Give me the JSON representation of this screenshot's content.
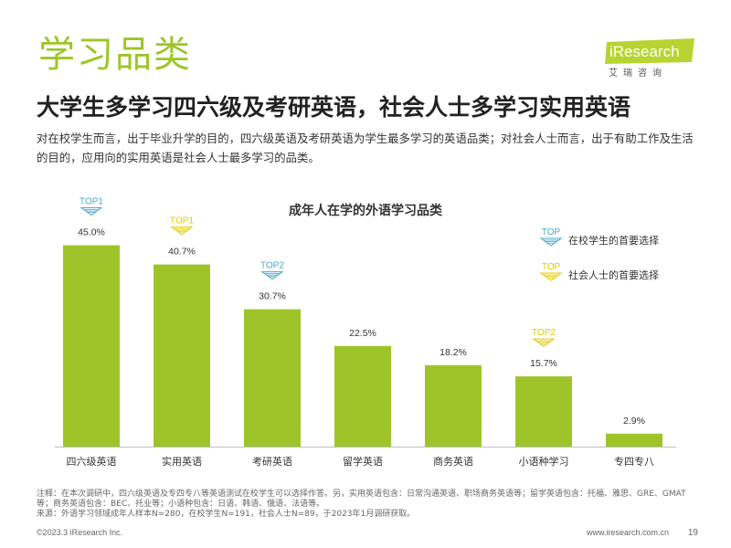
{
  "page": {
    "section_title": "学习品类",
    "headline": "大学生多学习四六级及考研英语，社会人士多学习实用英语",
    "summary": "对在校学生而言，出于毕业升学的目的，四六级英语及考研英语为学生最多学习的英语品类；对社会人士而言，出于有助工作及生活的目的，应用向的实用英语是社会人士最多学习的品类。",
    "notes": "注释：在本次调研中，四六级英语及专四专八等英语测试在校学生可以选择作答。另，实用英语包含：日常沟通英语、职场商务英语等；留学英语包含：托福、雅思、GRE、GMAT等；商务英语包含：BEC、托业等；小语种包含：日语、韩语、俄语、法语等。",
    "source": "来源：外语学习领域成年人样本N=280，在校学生N=191，社会人士N=89，于2023年1月调研获取。",
    "copyright": "©2023.3 iResearch Inc.",
    "website": "www.iresearch.com.cn",
    "page_number": "19"
  },
  "logo": {
    "name": "iResearch",
    "chinese": "艾瑞咨询"
  },
  "colors": {
    "accent_green": "#9dc52a",
    "top_student": "#4aa8c8",
    "top_social": "#e3c800",
    "text_dark": "#222222"
  },
  "legend": {
    "student_badge": "TOP",
    "student_label": "在校学生的首要选择",
    "social_badge": "TOP",
    "social_label": "社会人士的首要选择"
  },
  "chart_data": {
    "type": "bar",
    "title": "成年人在学的外语学习品类",
    "categories": [
      "四六级英语",
      "实用英语",
      "考研英语",
      "留学英语",
      "商务英语",
      "小语种学习",
      "专四专八"
    ],
    "values": [
      45.0,
      40.7,
      30.7,
      22.5,
      18.2,
      15.7,
      2.9
    ],
    "value_labels": [
      "45.0%",
      "40.7%",
      "30.7%",
      "22.5%",
      "18.2%",
      "15.7%",
      "2.9%"
    ],
    "unit": "%",
    "ylim": [
      0,
      50
    ],
    "grid": false,
    "legend_position": "top-right",
    "color": "#9dc52a",
    "annotations": [
      {
        "category": "四六级英语",
        "text": "TOP1",
        "group": "student"
      },
      {
        "category": "实用英语",
        "text": "TOP1",
        "group": "social"
      },
      {
        "category": "考研英语",
        "text": "TOP2",
        "group": "student"
      },
      {
        "category": "小语种学习",
        "text": "TOP2",
        "group": "social"
      }
    ]
  }
}
